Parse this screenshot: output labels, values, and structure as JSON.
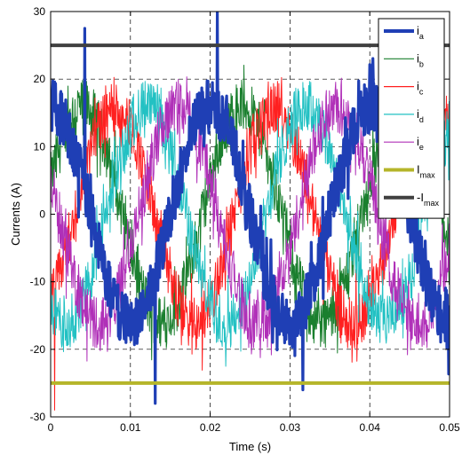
{
  "chart_data": {
    "type": "line",
    "title": "",
    "xlabel": "Time (s)",
    "ylabel": "Currents (A)",
    "xlim": [
      0,
      0.05
    ],
    "ylim": [
      -30,
      30
    ],
    "x_ticks": [
      "0",
      "0.01",
      "0.02",
      "0.03",
      "0.04",
      "0.05"
    ],
    "y_ticks": [
      "30",
      "20",
      "10",
      "0",
      "-10",
      "-20",
      "-30"
    ],
    "grid": true,
    "grid_style": "dashed",
    "legend_position": "top-right",
    "waveform": {
      "amplitude_A": 16,
      "frequency_Hz": 50,
      "phase_shift_deg": 72,
      "noise_A": 4
    },
    "series": [
      {
        "name": "i",
        "subscript": "a",
        "color": "#1f3fb5",
        "phase_deg": 90,
        "thick": true,
        "spikes": [
          [
            0.0043,
            27.5
          ],
          [
            0.0209,
            30
          ],
          [
            0.0131,
            -28
          ],
          [
            0.0316,
            -26
          ]
        ]
      },
      {
        "name": "i",
        "subscript": "b",
        "color": "#1a7f2e",
        "phase_deg": 18,
        "thick": false
      },
      {
        "name": "i",
        "subscript": "c",
        "color": "#ff2020",
        "phase_deg": -54,
        "thick": false,
        "spikes": [
          [
            0.0005,
            -29
          ]
        ]
      },
      {
        "name": "i",
        "subscript": "d",
        "color": "#22c1c3",
        "phase_deg": -126,
        "thick": false
      },
      {
        "name": "i",
        "subscript": "e",
        "color": "#b030b8",
        "phase_deg": 162,
        "thick": false
      },
      {
        "name": "I",
        "subscript": "max",
        "color": "#b5b52a",
        "constant": -25,
        "thick": true
      },
      {
        "name": "-I",
        "subscript": "max",
        "color": "#404040",
        "constant": 25,
        "thick": true
      }
    ]
  }
}
